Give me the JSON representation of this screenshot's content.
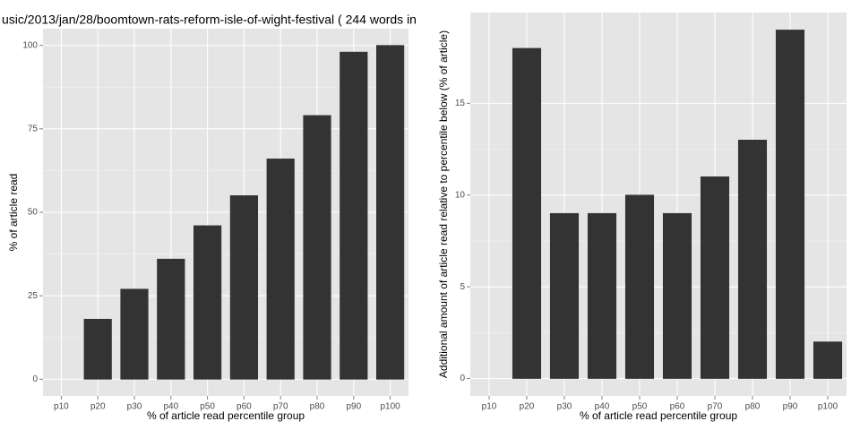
{
  "chart_data": [
    {
      "type": "bar",
      "title": "usic/2013/jan/28/boomtown-rats-reform-isle-of-wight-festival ( 244 words in",
      "xlabel": "% of article read percentile group",
      "ylabel": "% of article read",
      "categories": [
        "p10",
        "p20",
        "p30",
        "p40",
        "p50",
        "p60",
        "p70",
        "p80",
        "p90",
        "p100"
      ],
      "values": [
        0,
        18,
        27,
        36,
        46,
        55,
        66,
        79,
        98,
        100
      ],
      "color": "#333333",
      "ylim": [
        -5,
        105
      ],
      "yticks": [
        0,
        25,
        50,
        75,
        100
      ],
      "grid": true
    },
    {
      "type": "bar",
      "xlabel": "% of article read percentile group",
      "ylabel": "Additional amount of article read relative to percentile below (% of article)",
      "categories": [
        "p10",
        "p20",
        "p30",
        "p40",
        "p50",
        "p60",
        "p70",
        "p80",
        "p90",
        "p100"
      ],
      "values": [
        0,
        18,
        9,
        9,
        10,
        9,
        11,
        13,
        19,
        2
      ],
      "color": "#333333",
      "ylim": [
        -0.95,
        19.95
      ],
      "yticks": [
        0,
        5,
        10,
        15
      ],
      "grid": true
    }
  ]
}
